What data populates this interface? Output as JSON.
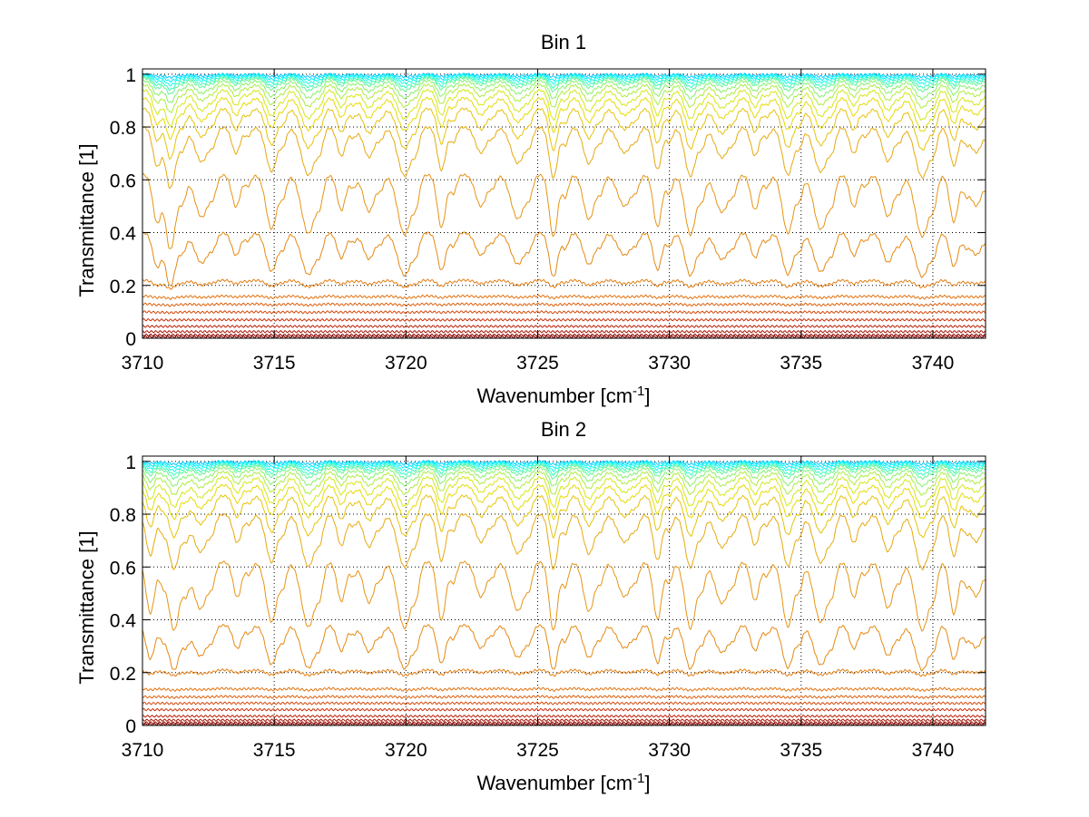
{
  "figure": {
    "background": "#ffffff"
  },
  "chart_data": [
    {
      "type": "line",
      "title": "Bin 1",
      "xlabel": "Wavenumber [cm",
      "xlabel_sup": "-1",
      "xlabel_end": "]",
      "ylabel": "Transmittance [1]",
      "xlim": [
        3710,
        3742
      ],
      "ylim": [
        0,
        1.02
      ],
      "xticks": [
        3710,
        3715,
        3720,
        3725,
        3730,
        3735,
        3740
      ],
      "xtick_labels": [
        "3710",
        "3715",
        "3720",
        "3725",
        "3730",
        "3735",
        "3740"
      ],
      "yticks": [
        0,
        0.2,
        0.4,
        0.6,
        0.8,
        1
      ],
      "ytick_labels": [
        "0",
        "0.2",
        "0.4",
        "0.6",
        "0.8",
        "1"
      ],
      "grid": true,
      "absorption_lines": [
        3710.55,
        3711.1,
        3712.25,
        3713.55,
        3714.9,
        3716.3,
        3717.55,
        3718.6,
        3719.95,
        3721.35,
        3722.85,
        3724.25,
        3725.6,
        3726.95,
        3728.3,
        3729.55,
        3730.8,
        3732.0,
        3733.25,
        3734.5,
        3735.75,
        3737.0,
        3738.3,
        3739.6,
        3740.8,
        3741.65
      ],
      "series_baselines": [
        1.0,
        0.998,
        0.995,
        0.99,
        0.985,
        0.975,
        0.96,
        0.94,
        0.91,
        0.87,
        0.8,
        0.62,
        0.4,
        0.22,
        0.16,
        0.13,
        0.1,
        0.07,
        0.045,
        0.025,
        0.012,
        0.005
      ],
      "line_depth_fraction": [
        0.01,
        0.02,
        0.03,
        0.04,
        0.05,
        0.07,
        0.09,
        0.12,
        0.14,
        0.18,
        0.24,
        0.38,
        0.42,
        0.12,
        0.05,
        0.04,
        0.03,
        0.02,
        0.01,
        0.01,
        0.0,
        0.0
      ]
    },
    {
      "type": "line",
      "title": "Bin 2",
      "xlabel": "Wavenumber [cm",
      "xlabel_sup": "-1",
      "xlabel_end": "]",
      "ylabel": "Transmittance [1]",
      "xlim": [
        3710,
        3742
      ],
      "ylim": [
        0,
        1.02
      ],
      "xticks": [
        3710,
        3715,
        3720,
        3725,
        3730,
        3735,
        3740
      ],
      "xtick_labels": [
        "3710",
        "3715",
        "3720",
        "3725",
        "3730",
        "3735",
        "3740"
      ],
      "yticks": [
        0,
        0.2,
        0.4,
        0.6,
        0.8,
        1
      ],
      "ytick_labels": [
        "0",
        "0.2",
        "0.4",
        "0.6",
        "0.8",
        "1"
      ],
      "grid": true,
      "absorption_lines": [
        3710.3,
        3711.2,
        3712.2,
        3713.6,
        3714.9,
        3716.3,
        3717.55,
        3718.6,
        3719.95,
        3721.35,
        3722.85,
        3724.25,
        3725.6,
        3726.95,
        3728.3,
        3729.55,
        3730.8,
        3732.0,
        3733.25,
        3734.5,
        3735.75,
        3737.0,
        3738.3,
        3739.6,
        3740.8,
        3741.65
      ],
      "series_baselines": [
        1.0,
        0.998,
        0.995,
        0.99,
        0.985,
        0.975,
        0.96,
        0.94,
        0.91,
        0.87,
        0.8,
        0.62,
        0.38,
        0.21,
        0.14,
        0.11,
        0.085,
        0.06,
        0.035,
        0.02,
        0.01,
        0.004
      ],
      "line_depth_fraction": [
        0.01,
        0.02,
        0.03,
        0.04,
        0.05,
        0.07,
        0.09,
        0.12,
        0.14,
        0.18,
        0.26,
        0.42,
        0.45,
        0.1,
        0.05,
        0.04,
        0.03,
        0.02,
        0.01,
        0.01,
        0.0,
        0.0
      ]
    }
  ]
}
